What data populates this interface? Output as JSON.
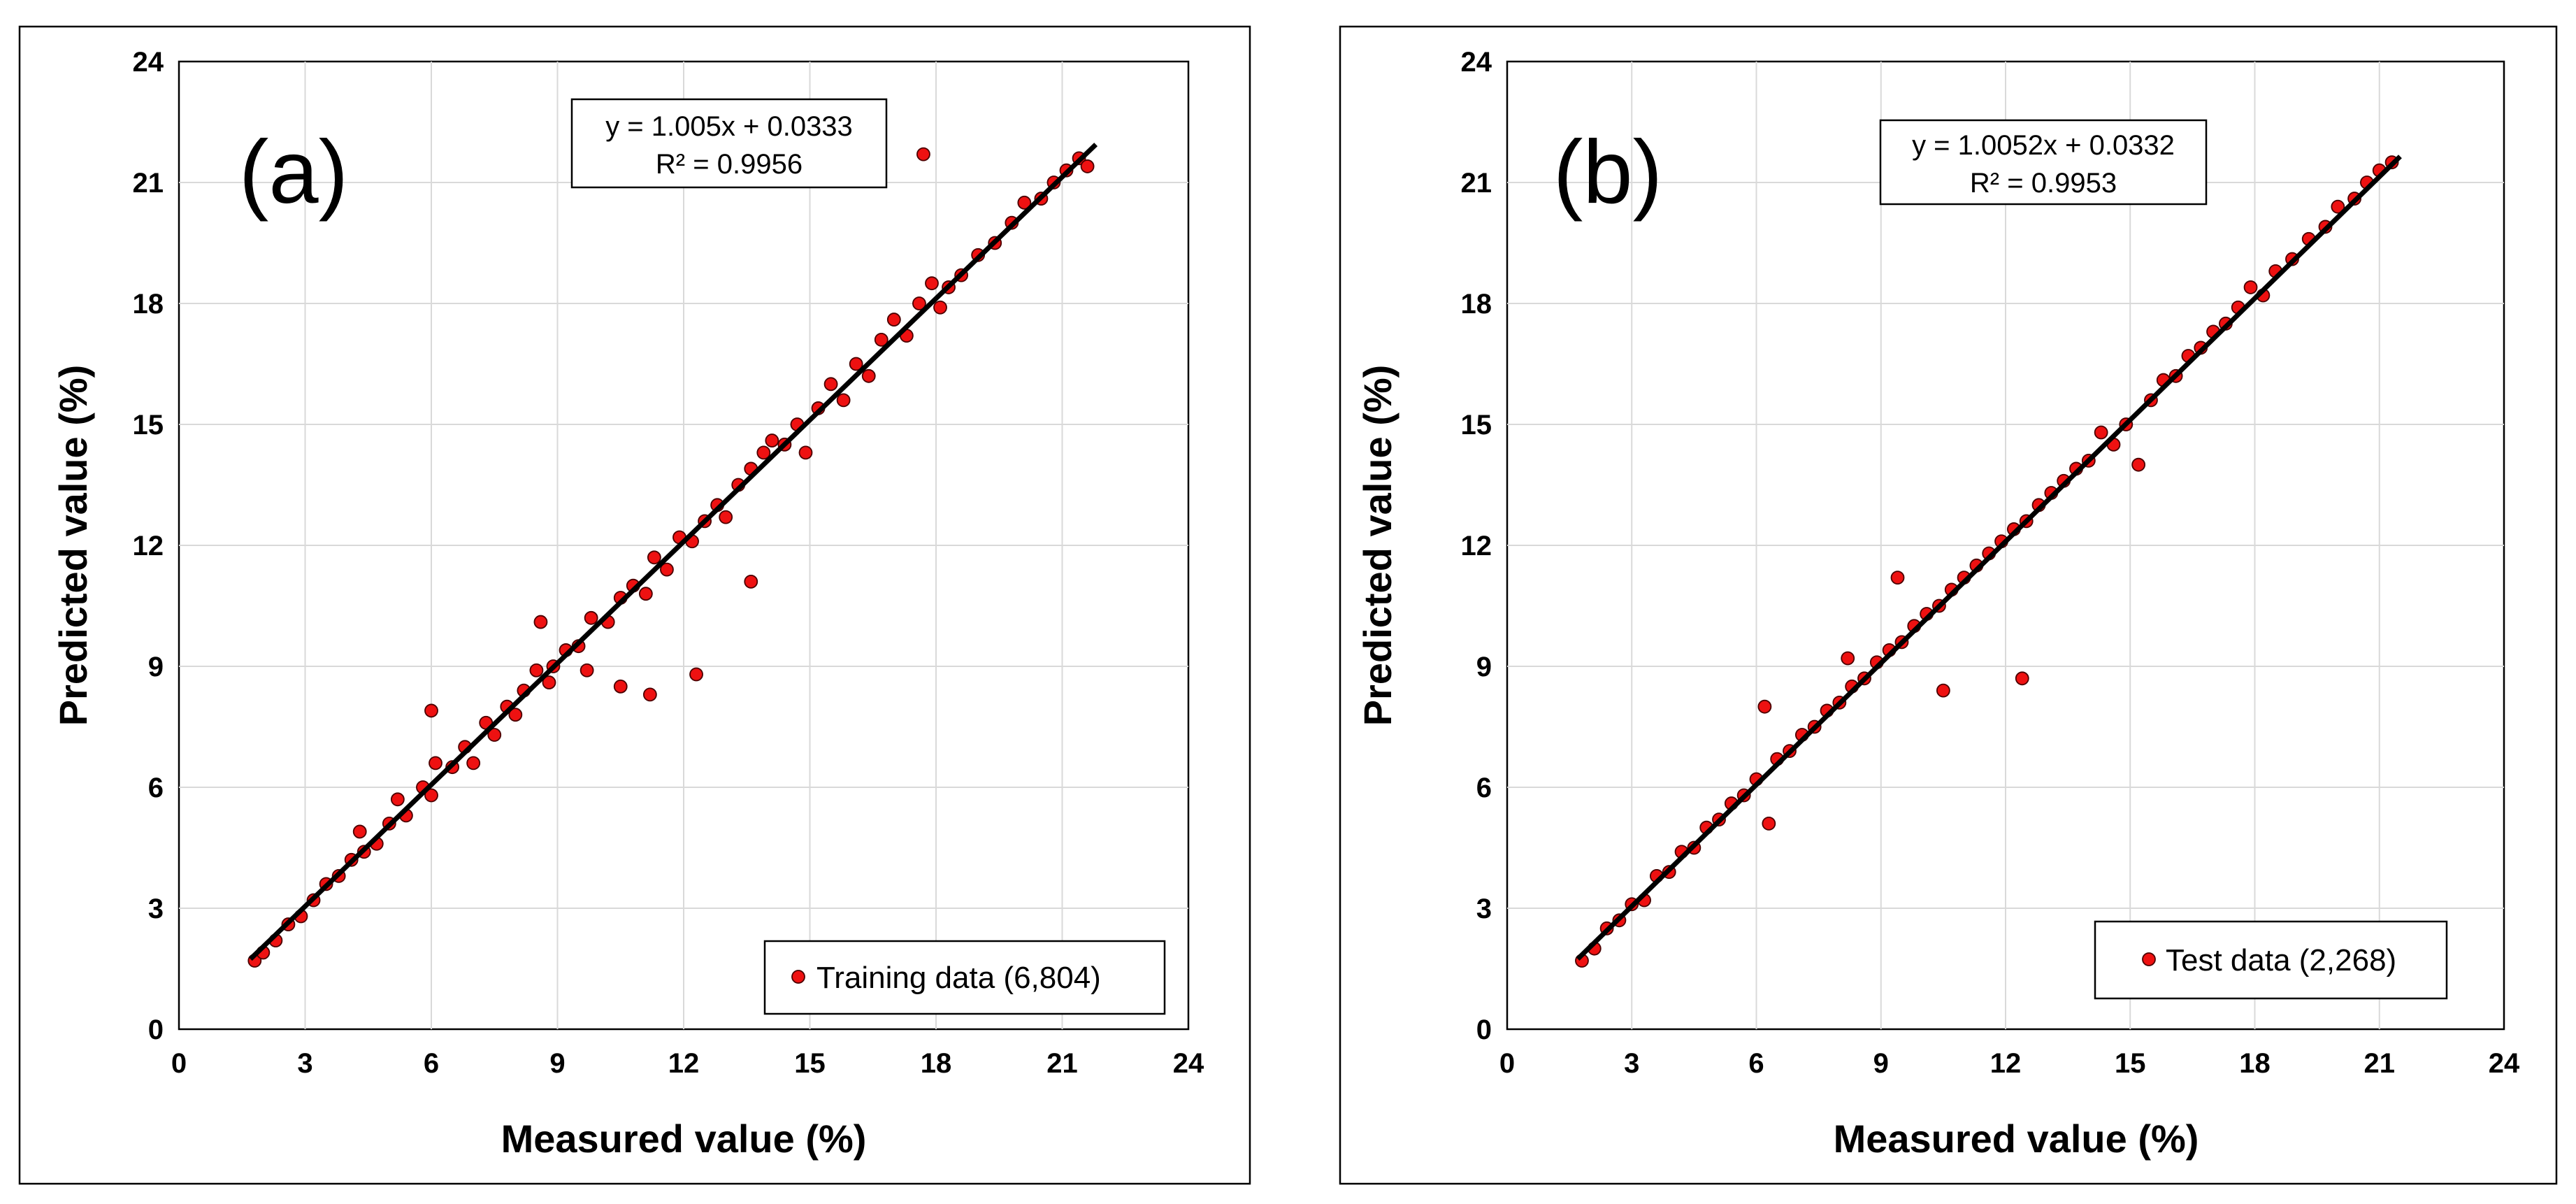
{
  "chart_data": [
    {
      "type": "scatter",
      "panel_label": "(a)",
      "xlabel": "Measured value (%)",
      "ylabel": "Predicted value (%)",
      "xlim": [
        0,
        24
      ],
      "ylim": [
        0,
        24
      ],
      "xticks": [
        "0",
        "3",
        "6",
        "9",
        "12",
        "15",
        "18",
        "21",
        "24"
      ],
      "yticks": [
        "0",
        "3",
        "6",
        "9",
        "12",
        "15",
        "18",
        "21",
        "24"
      ],
      "grid": true,
      "legend": {
        "placement": "bottom-right",
        "label": "Training data (6,804)"
      },
      "series": [
        {
          "name": "Training data (6,804)",
          "color": "#ee1111",
          "trend_range": [
            1.7,
            21.8
          ],
          "points": [
            [
              1.8,
              1.7
            ],
            [
              2.0,
              1.9
            ],
            [
              2.3,
              2.2
            ],
            [
              2.6,
              2.6
            ],
            [
              2.9,
              2.8
            ],
            [
              3.2,
              3.2
            ],
            [
              3.5,
              3.6
            ],
            [
              3.8,
              3.8
            ],
            [
              4.1,
              4.2
            ],
            [
              4.4,
              4.4
            ],
            [
              4.3,
              4.9
            ],
            [
              4.7,
              4.6
            ],
            [
              5.0,
              5.1
            ],
            [
              5.2,
              5.7
            ],
            [
              5.4,
              5.3
            ],
            [
              5.8,
              6.0
            ],
            [
              6.0,
              5.8
            ],
            [
              6.1,
              6.6
            ],
            [
              6.0,
              7.9
            ],
            [
              6.5,
              6.5
            ],
            [
              6.8,
              7.0
            ],
            [
              7.0,
              6.6
            ],
            [
              7.3,
              7.6
            ],
            [
              7.5,
              7.3
            ],
            [
              7.8,
              8.0
            ],
            [
              8.0,
              7.8
            ],
            [
              8.2,
              8.4
            ],
            [
              8.5,
              8.9
            ],
            [
              8.8,
              8.6
            ],
            [
              8.6,
              10.1
            ],
            [
              8.9,
              9.0
            ],
            [
              9.2,
              9.4
            ],
            [
              9.5,
              9.5
            ],
            [
              9.7,
              8.9
            ],
            [
              9.8,
              10.2
            ],
            [
              10.2,
              10.1
            ],
            [
              10.5,
              10.7
            ],
            [
              10.5,
              8.5
            ],
            [
              10.8,
              11.0
            ],
            [
              11.1,
              10.8
            ],
            [
              11.2,
              8.3
            ],
            [
              11.3,
              11.7
            ],
            [
              11.6,
              11.4
            ],
            [
              11.9,
              12.2
            ],
            [
              12.2,
              12.1
            ],
            [
              12.3,
              8.8
            ],
            [
              12.5,
              12.6
            ],
            [
              12.8,
              13.0
            ],
            [
              13.0,
              12.7
            ],
            [
              13.3,
              13.5
            ],
            [
              13.6,
              13.9
            ],
            [
              13.6,
              11.1
            ],
            [
              13.9,
              14.3
            ],
            [
              14.1,
              14.6
            ],
            [
              14.4,
              14.5
            ],
            [
              14.7,
              15.0
            ],
            [
              14.9,
              14.3
            ],
            [
              15.2,
              15.4
            ],
            [
              15.5,
              16.0
            ],
            [
              15.8,
              15.6
            ],
            [
              16.1,
              16.5
            ],
            [
              16.4,
              16.2
            ],
            [
              16.7,
              17.1
            ],
            [
              17.0,
              17.6
            ],
            [
              17.3,
              17.2
            ],
            [
              17.6,
              18.0
            ],
            [
              17.7,
              21.7
            ],
            [
              17.9,
              18.5
            ],
            [
              18.1,
              17.9
            ],
            [
              18.3,
              18.4
            ],
            [
              18.6,
              18.7
            ],
            [
              19.0,
              19.2
            ],
            [
              19.4,
              19.5
            ],
            [
              19.8,
              20.0
            ],
            [
              20.1,
              20.5
            ],
            [
              20.5,
              20.6
            ],
            [
              20.8,
              21.0
            ],
            [
              21.1,
              21.3
            ],
            [
              21.4,
              21.6
            ],
            [
              21.6,
              21.4
            ]
          ]
        }
      ],
      "equation": "y = 1.005x + 0.0333",
      "r_squared": "R² = 0.9956",
      "fit": {
        "slope": 1.005,
        "intercept": 0.0333,
        "r2": 0.9956
      }
    },
    {
      "type": "scatter",
      "panel_label": "(b)",
      "xlabel": "Measured value (%)",
      "ylabel": "Predicted value (%)",
      "xlim": [
        0,
        24
      ],
      "ylim": [
        0,
        24
      ],
      "xticks": [
        "0",
        "3",
        "6",
        "9",
        "12",
        "15",
        "18",
        "21",
        "24"
      ],
      "yticks": [
        "0",
        "3",
        "6",
        "9",
        "12",
        "15",
        "18",
        "21",
        "24"
      ],
      "grid": true,
      "legend": {
        "placement": "bottom-right",
        "label": "Test data (2,268)"
      },
      "series": [
        {
          "name": "Test data (2,268)",
          "color": "#ee1111",
          "trend_range": [
            1.7,
            21.5
          ],
          "points": [
            [
              1.8,
              1.7
            ],
            [
              2.1,
              2.0
            ],
            [
              2.4,
              2.5
            ],
            [
              2.7,
              2.7
            ],
            [
              3.0,
              3.1
            ],
            [
              3.3,
              3.2
            ],
            [
              3.6,
              3.8
            ],
            [
              3.9,
              3.9
            ],
            [
              4.2,
              4.4
            ],
            [
              4.5,
              4.5
            ],
            [
              4.8,
              5.0
            ],
            [
              5.1,
              5.2
            ],
            [
              5.4,
              5.6
            ],
            [
              5.7,
              5.8
            ],
            [
              6.0,
              6.2
            ],
            [
              6.2,
              8.0
            ],
            [
              6.3,
              5.1
            ],
            [
              6.5,
              6.7
            ],
            [
              6.8,
              6.9
            ],
            [
              7.1,
              7.3
            ],
            [
              7.4,
              7.5
            ],
            [
              7.7,
              7.9
            ],
            [
              8.0,
              8.1
            ],
            [
              8.2,
              9.2
            ],
            [
              8.3,
              8.5
            ],
            [
              8.6,
              8.7
            ],
            [
              8.9,
              9.1
            ],
            [
              9.2,
              9.4
            ],
            [
              9.4,
              11.2
            ],
            [
              9.5,
              9.6
            ],
            [
              9.8,
              10.0
            ],
            [
              10.1,
              10.3
            ],
            [
              10.4,
              10.5
            ],
            [
              10.5,
              8.4
            ],
            [
              10.7,
              10.9
            ],
            [
              11.0,
              11.2
            ],
            [
              11.3,
              11.5
            ],
            [
              11.6,
              11.8
            ],
            [
              11.9,
              12.1
            ],
            [
              12.2,
              12.4
            ],
            [
              12.4,
              8.7
            ],
            [
              12.5,
              12.6
            ],
            [
              12.8,
              13.0
            ],
            [
              13.1,
              13.3
            ],
            [
              13.4,
              13.6
            ],
            [
              13.7,
              13.9
            ],
            [
              14.0,
              14.1
            ],
            [
              14.3,
              14.8
            ],
            [
              14.6,
              14.5
            ],
            [
              14.9,
              15.0
            ],
            [
              15.2,
              14.0
            ],
            [
              15.5,
              15.6
            ],
            [
              15.8,
              16.1
            ],
            [
              16.1,
              16.2
            ],
            [
              16.4,
              16.7
            ],
            [
              16.7,
              16.9
            ],
            [
              17.0,
              17.3
            ],
            [
              17.3,
              17.5
            ],
            [
              17.6,
              17.9
            ],
            [
              17.9,
              18.4
            ],
            [
              18.2,
              18.2
            ],
            [
              18.5,
              18.8
            ],
            [
              18.9,
              19.1
            ],
            [
              19.3,
              19.6
            ],
            [
              19.7,
              19.9
            ],
            [
              20.0,
              20.4
            ],
            [
              20.4,
              20.6
            ],
            [
              20.7,
              21.0
            ],
            [
              21.0,
              21.3
            ],
            [
              21.3,
              21.5
            ]
          ]
        }
      ],
      "equation": "y = 1.0052x + 0.0332",
      "r_squared": "R² = 0.9953",
      "fit": {
        "slope": 1.0052,
        "intercept": 0.0332,
        "r2": 0.9953
      }
    }
  ]
}
